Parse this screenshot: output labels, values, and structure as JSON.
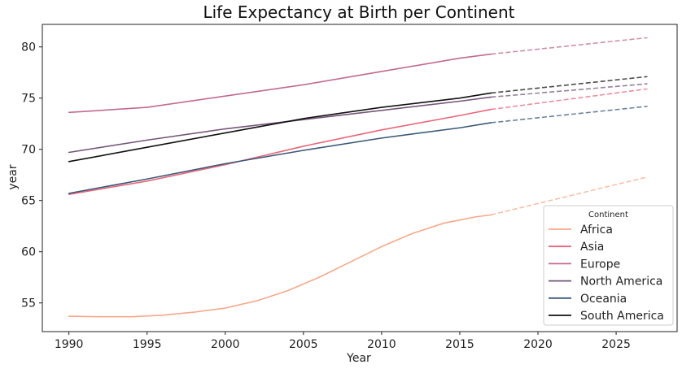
{
  "chart_data": {
    "type": "line",
    "title": "Life Expectancy at Birth per Continent",
    "xlabel": "Year",
    "ylabel": "year",
    "xlim": [
      1988.3,
      2028.9
    ],
    "ylim": [
      52.2,
      82.2
    ],
    "xticks": [
      1990,
      1995,
      2000,
      2005,
      2010,
      2015,
      2020,
      2025
    ],
    "yticks": [
      55,
      60,
      65,
      70,
      75,
      80
    ],
    "grid": false,
    "legend": {
      "title": "Continent",
      "position": "lower-right"
    },
    "series": [
      {
        "name": "Africa",
        "color": "#f7a889",
        "x": [
          1990,
          1992,
          1994,
          1996,
          1998,
          2000,
          2002,
          2004,
          2006,
          2008,
          2010,
          2012,
          2014,
          2016,
          2017
        ],
        "values": [
          53.7,
          53.65,
          53.65,
          53.8,
          54.1,
          54.5,
          55.2,
          56.2,
          57.5,
          59.0,
          60.5,
          61.8,
          62.8,
          63.4,
          63.6
        ],
        "forecast_x": [
          2017,
          2027
        ],
        "forecast_values": [
          63.6,
          67.3
        ]
      },
      {
        "name": "Asia",
        "color": "#e8667a",
        "x": [
          1990,
          1995,
          2000,
          2005,
          2010,
          2015,
          2017
        ],
        "values": [
          65.6,
          66.9,
          68.5,
          70.3,
          71.9,
          73.3,
          73.9
        ],
        "forecast_x": [
          2017,
          2027
        ],
        "forecast_values": [
          73.9,
          75.9
        ]
      },
      {
        "name": "Europe",
        "color": "#c26a90",
        "x": [
          1990,
          1995,
          2000,
          2005,
          2010,
          2015,
          2017
        ],
        "values": [
          73.6,
          74.1,
          75.2,
          76.3,
          77.6,
          78.9,
          79.3
        ],
        "forecast_x": [
          2017,
          2027
        ],
        "forecast_values": [
          79.3,
          80.9
        ]
      },
      {
        "name": "North America",
        "color": "#76557a",
        "x": [
          1990,
          1995,
          2000,
          2005,
          2010,
          2015,
          2017
        ],
        "values": [
          69.7,
          70.9,
          72.0,
          72.9,
          73.8,
          74.7,
          75.1
        ],
        "forecast_x": [
          2017,
          2027
        ],
        "forecast_values": [
          75.1,
          76.4
        ]
      },
      {
        "name": "Oceania",
        "color": "#3a5878",
        "x": [
          1990,
          1995,
          2000,
          2005,
          2010,
          2015,
          2017
        ],
        "values": [
          65.7,
          67.1,
          68.6,
          69.9,
          71.1,
          72.1,
          72.6
        ],
        "forecast_x": [
          2017,
          2027
        ],
        "forecast_values": [
          72.6,
          74.2
        ]
      },
      {
        "name": "South America",
        "color": "#111111",
        "x": [
          1990,
          1995,
          2000,
          2005,
          2010,
          2015,
          2017
        ],
        "values": [
          68.8,
          70.2,
          71.6,
          73.0,
          74.1,
          75.0,
          75.5
        ],
        "forecast_x": [
          2017,
          2027
        ],
        "forecast_values": [
          75.5,
          77.1
        ]
      }
    ]
  }
}
